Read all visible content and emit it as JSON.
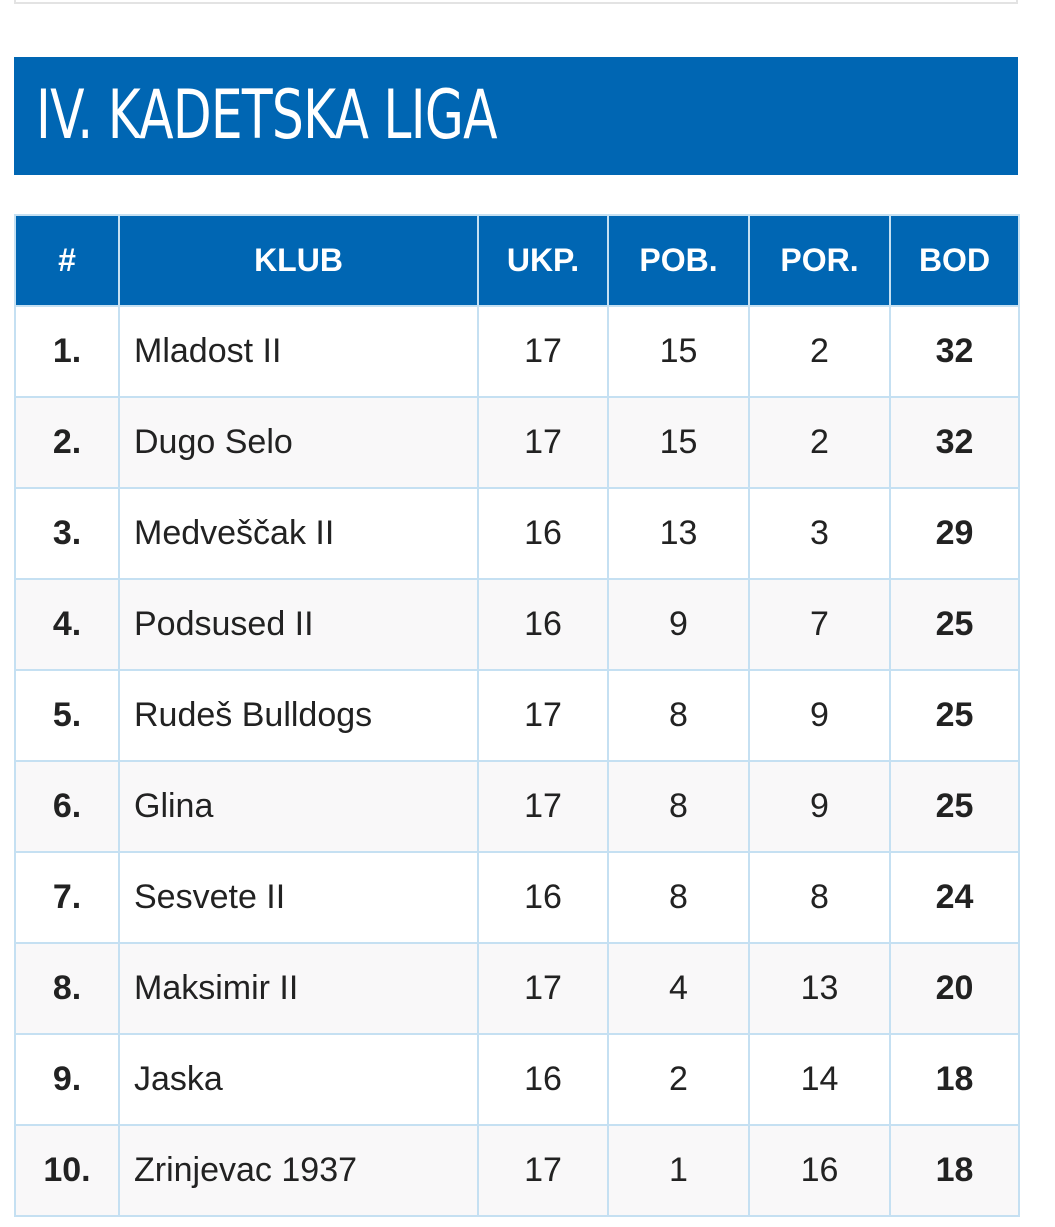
{
  "title": "IV. KADETSKA LIGA",
  "table": {
    "headers": {
      "rank": "#",
      "club": "KLUB",
      "played": "UKP.",
      "wins": "POB.",
      "losses": "POR.",
      "points": "BOD"
    },
    "rows": [
      {
        "rank": "1.",
        "club": "Mladost II",
        "played": "17",
        "wins": "15",
        "losses": "2",
        "points": "32"
      },
      {
        "rank": "2.",
        "club": "Dugo Selo",
        "played": "17",
        "wins": "15",
        "losses": "2",
        "points": "32"
      },
      {
        "rank": "3.",
        "club": "Medveščak II",
        "played": "16",
        "wins": "13",
        "losses": "3",
        "points": "29"
      },
      {
        "rank": "4.",
        "club": "Podsused II",
        "played": "16",
        "wins": "9",
        "losses": "7",
        "points": "25"
      },
      {
        "rank": "5.",
        "club": "Rudeš Bulldogs",
        "played": "17",
        "wins": "8",
        "losses": "9",
        "points": "25"
      },
      {
        "rank": "6.",
        "club": "Glina",
        "played": "17",
        "wins": "8",
        "losses": "9",
        "points": "25"
      },
      {
        "rank": "7.",
        "club": "Sesvete II",
        "played": "16",
        "wins": "8",
        "losses": "8",
        "points": "24"
      },
      {
        "rank": "8.",
        "club": "Maksimir II",
        "played": "17",
        "wins": "4",
        "losses": "13",
        "points": "20"
      },
      {
        "rank": "9.",
        "club": "Jaska",
        "played": "16",
        "wins": "2",
        "losses": "14",
        "points": "18"
      },
      {
        "rank": "10.",
        "club": "Zrinjevac 1937",
        "played": "17",
        "wins": "1",
        "losses": "16",
        "points": "18"
      }
    ]
  },
  "colors": {
    "primary_blue": "#0066b3",
    "border_light_blue": "#c5e0f2",
    "row_alt": "#f9f8f9"
  }
}
